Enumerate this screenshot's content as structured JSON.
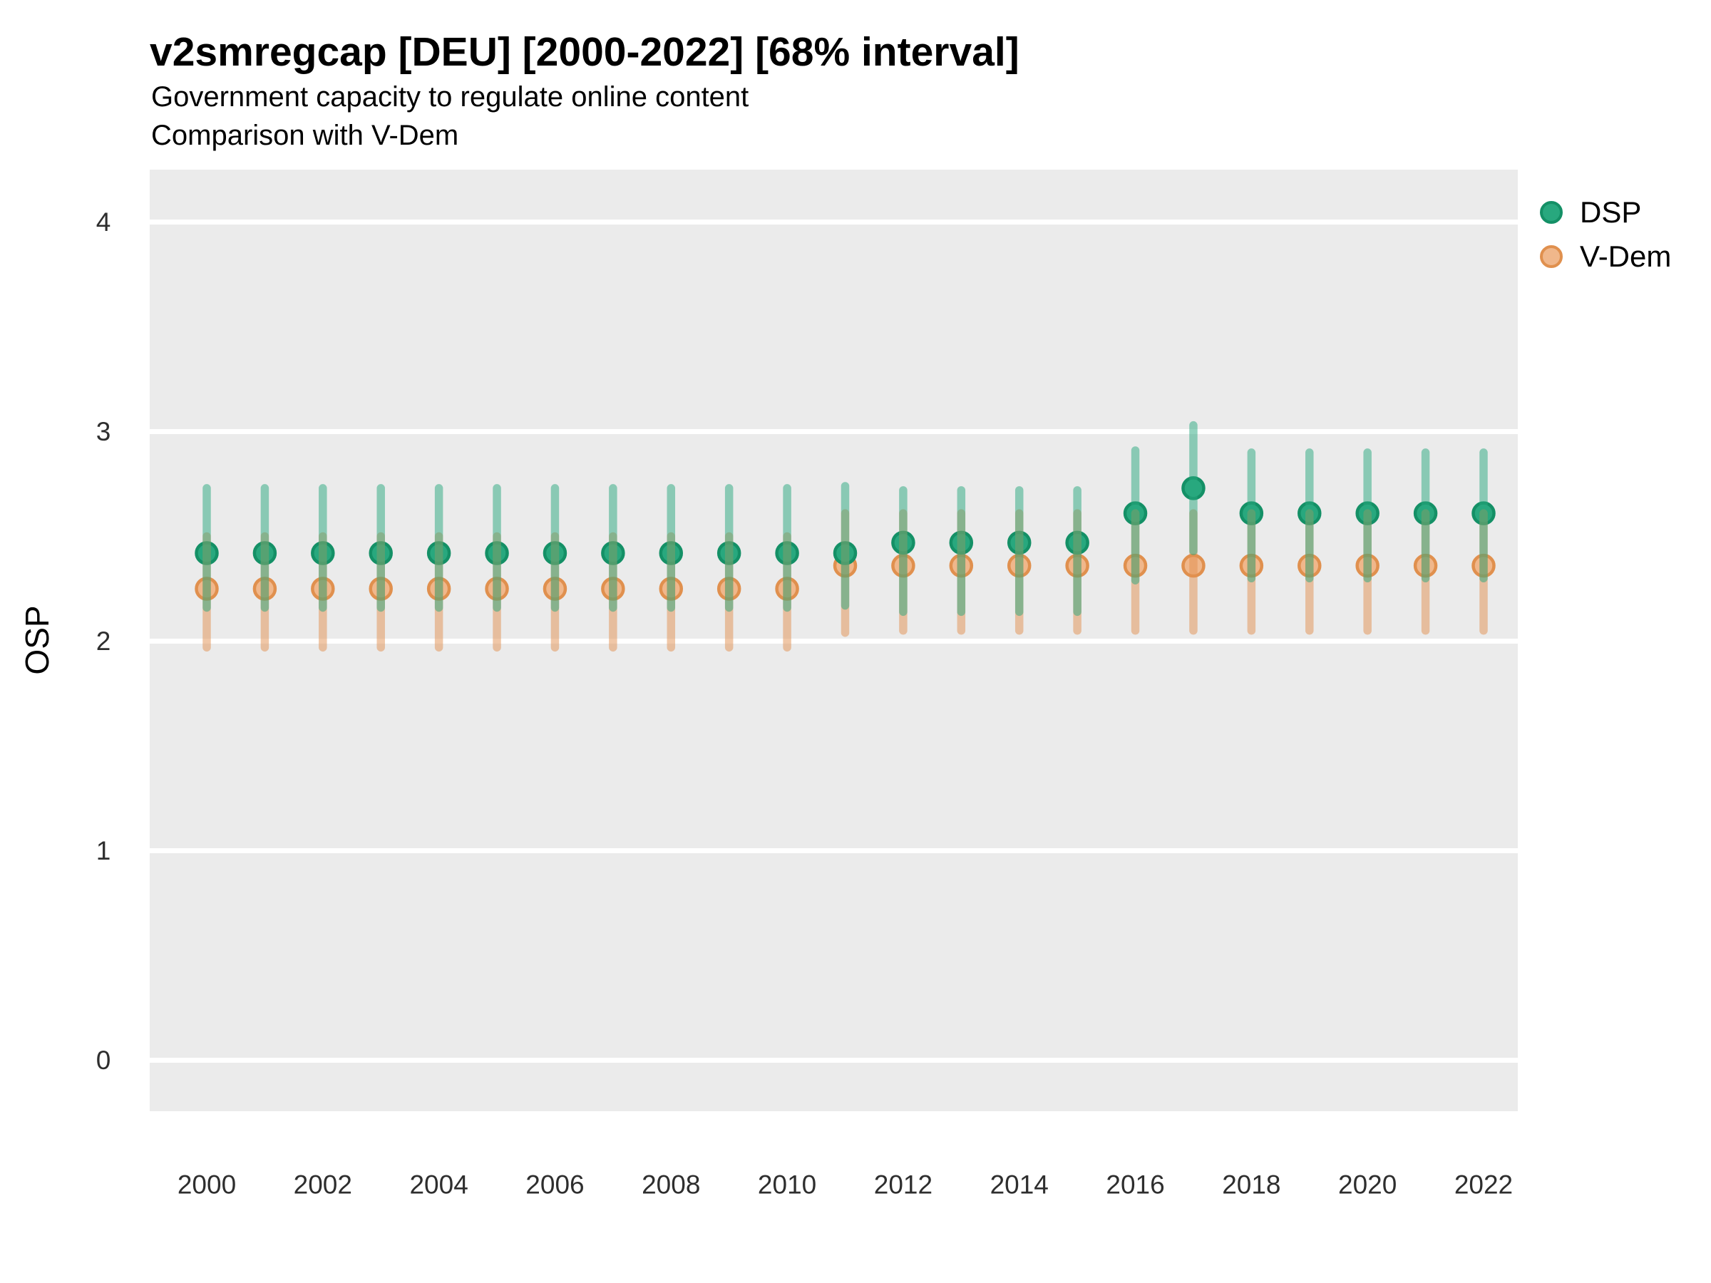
{
  "chart_data": {
    "type": "pointrange",
    "title": "v2smregcap [DEU] [2000-2022] [68% interval]",
    "subtitle1": "Government capacity to regulate online content",
    "subtitle2": "Comparison with V-Dem",
    "xlabel": "",
    "ylabel": "OSP",
    "panel_color": "#ebebeb",
    "grid_color": "#ffffff",
    "legend_position": "right-top",
    "grid": "horizontal major gridlines only",
    "xlim": [
      1999.0,
      2022.6
    ],
    "ylim": [
      -0.25,
      4.25
    ],
    "x_ticks": [
      2000,
      2002,
      2004,
      2006,
      2008,
      2010,
      2012,
      2014,
      2016,
      2018,
      2020,
      2022
    ],
    "y_ticks": [
      0,
      1,
      2,
      3,
      4
    ],
    "x": [
      2000,
      2001,
      2002,
      2003,
      2004,
      2005,
      2006,
      2007,
      2008,
      2009,
      2010,
      2011,
      2012,
      2013,
      2014,
      2015,
      2016,
      2017,
      2018,
      2019,
      2020,
      2021,
      2022
    ],
    "series": [
      {
        "name": "DSP",
        "point_fill": "#28a87e",
        "point_stroke": "#149066",
        "bar_color": "rgba(39,168,126,0.5)",
        "est": [
          2.42,
          2.42,
          2.42,
          2.42,
          2.42,
          2.42,
          2.42,
          2.42,
          2.42,
          2.42,
          2.42,
          2.42,
          2.47,
          2.47,
          2.47,
          2.47,
          2.61,
          2.73,
          2.61,
          2.61,
          2.61,
          2.61,
          2.61
        ],
        "lo": [
          2.16,
          2.16,
          2.16,
          2.16,
          2.16,
          2.16,
          2.16,
          2.16,
          2.16,
          2.16,
          2.16,
          2.17,
          2.14,
          2.14,
          2.14,
          2.14,
          2.29,
          2.43,
          2.3,
          2.3,
          2.3,
          2.3,
          2.3
        ],
        "hi": [
          2.73,
          2.73,
          2.73,
          2.73,
          2.73,
          2.73,
          2.73,
          2.73,
          2.73,
          2.73,
          2.73,
          2.74,
          2.72,
          2.72,
          2.72,
          2.72,
          2.91,
          3.03,
          2.9,
          2.9,
          2.9,
          2.9,
          2.9
        ]
      },
      {
        "name": "V-Dem",
        "point_fill": "#f0b78b",
        "point_stroke": "#e0904e",
        "bar_color": "rgba(225,143,79,0.5)",
        "est": [
          2.25,
          2.25,
          2.25,
          2.25,
          2.25,
          2.25,
          2.25,
          2.25,
          2.25,
          2.25,
          2.25,
          2.36,
          2.36,
          2.36,
          2.36,
          2.36,
          2.36,
          2.36,
          2.36,
          2.36,
          2.36,
          2.36,
          2.36
        ],
        "lo": [
          1.97,
          1.97,
          1.97,
          1.97,
          1.97,
          1.97,
          1.97,
          1.97,
          1.97,
          1.97,
          1.97,
          2.04,
          2.05,
          2.05,
          2.05,
          2.05,
          2.05,
          2.05,
          2.05,
          2.05,
          2.05,
          2.05,
          2.05
        ],
        "hi": [
          2.5,
          2.5,
          2.5,
          2.5,
          2.5,
          2.5,
          2.5,
          2.5,
          2.5,
          2.5,
          2.5,
          2.61,
          2.61,
          2.61,
          2.61,
          2.61,
          2.61,
          2.61,
          2.61,
          2.61,
          2.61,
          2.61,
          2.61
        ]
      }
    ]
  }
}
